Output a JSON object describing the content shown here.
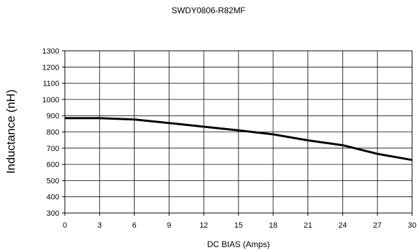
{
  "chart_data": {
    "type": "line",
    "title": "SWDY0806-R82MF",
    "xlabel": "DC BIAS (Amps)",
    "ylabel": "Inductance (nH)",
    "xlim": [
      0,
      30
    ],
    "ylim": [
      300,
      1300
    ],
    "xticks": [
      0,
      3,
      6,
      9,
      12,
      15,
      18,
      21,
      24,
      27,
      30
    ],
    "yticks": [
      300,
      400,
      500,
      600,
      700,
      800,
      900,
      1000,
      1100,
      1200,
      1300
    ],
    "grid": true,
    "legend": "none",
    "series": [
      {
        "color": "#000000",
        "x": [
          0,
          3,
          6,
          9,
          12,
          15,
          18,
          21,
          24,
          27,
          30
        ],
        "y": [
          885,
          885,
          877,
          855,
          832,
          810,
          785,
          748,
          718,
          665,
          627
        ]
      }
    ]
  }
}
